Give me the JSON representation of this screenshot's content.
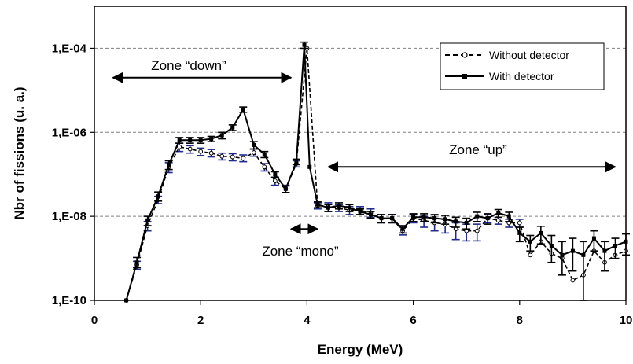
{
  "chart_data": {
    "type": "line",
    "title": "",
    "xlabel": "Energy (MeV)",
    "ylabel": "Nbr of fissions (u. a.)",
    "x_scale": "linear",
    "y_scale": "log",
    "xlim": [
      0,
      10
    ],
    "ylim": [
      1e-10,
      0.001
    ],
    "x_ticks": [
      0,
      2,
      4,
      6,
      8,
      10
    ],
    "x_tick_labels": [
      "0",
      "2",
      "4",
      "6",
      "8",
      "10"
    ],
    "y_ticks": [
      1e-10,
      1e-08,
      1e-06,
      0.0001
    ],
    "y_tick_labels": [
      "1,E-10",
      "1,E-08",
      "1,E-06",
      "1,E-04"
    ],
    "grid": {
      "y_major": true,
      "style": "dashed"
    },
    "legend": {
      "position": "top-right",
      "entries": [
        "Without detector",
        "With detector"
      ]
    },
    "annotations": [
      {
        "text": "Zone “down”",
        "arrow_from_x": 0.35,
        "arrow_to_x": 3.7,
        "arrow_y": 2e-05
      },
      {
        "text": "Zone “up”",
        "arrow_from_x": 4.4,
        "arrow_to_x": 9.8,
        "arrow_y": 1.5e-07
      },
      {
        "text": "Zone “mono”",
        "arrow_from_x": 3.7,
        "arrow_to_x": 4.2,
        "arrow_y": 5e-09
      }
    ],
    "colors": {
      "error_bars_without": "#1f2a8c",
      "line": "#000000",
      "grid": "#808080"
    },
    "series": [
      {
        "name": "Without detector",
        "style": "dashed",
        "marker": "open-circle",
        "x": [
          0.6,
          0.8,
          1.0,
          1.2,
          1.4,
          1.6,
          1.8,
          2.0,
          2.2,
          2.4,
          2.6,
          2.8,
          3.0,
          3.2,
          3.4,
          3.6,
          3.8,
          4.0,
          4.2,
          4.4,
          4.6,
          4.8,
          5.0,
          5.2,
          5.4,
          5.6,
          5.8,
          6.0,
          6.2,
          6.4,
          6.6,
          6.8,
          7.0,
          7.2,
          7.4,
          7.6,
          7.8,
          8.0,
          8.2,
          8.4,
          8.6,
          8.8,
          9.0,
          9.2,
          9.4,
          9.6,
          9.8,
          10.0
        ],
        "y": [
          1e-10,
          7e-10,
          6e-09,
          2.5e-08,
          1.5e-07,
          4.5e-07,
          4e-07,
          3.5e-07,
          3.2e-07,
          2.7e-07,
          2.6e-07,
          2.4e-07,
          3.3e-07,
          1.5e-07,
          7e-08,
          4.5e-08,
          1.8e-07,
          0.0001,
          1.8e-08,
          1.7e-08,
          1.6e-08,
          1.4e-08,
          1.4e-08,
          1.2e-08,
          9e-09,
          9e-09,
          4.5e-09,
          9e-09,
          8e-09,
          7e-09,
          6.5e-09,
          5e-09,
          4.5e-09,
          4.5e-09,
          9e-09,
          8e-09,
          7e-09,
          7e-09,
          1.2e-09,
          2.5e-09,
          1.3e-09,
          1e-09,
          3e-10,
          4e-10,
          1.5e-09,
          8e-10,
          1.2e-09,
          1.5e-09
        ],
        "err_low": [
          null,
          5.5e-10,
          4.5e-09,
          2e-08,
          1.1e-07,
          3.5e-07,
          3.2e-07,
          2.8e-07,
          2.6e-07,
          2.2e-07,
          2.1e-07,
          2e-07,
          2.7e-07,
          1.2e-07,
          5.5e-08,
          3.7e-08,
          1.5e-07,
          null,
          1.5e-08,
          1.3e-08,
          1.3e-08,
          1.1e-08,
          1.1e-08,
          9.5e-09,
          7e-09,
          7e-09,
          3.6e-09,
          7e-09,
          5.5e-09,
          4.5e-09,
          4e-09,
          2.8e-09,
          2.6e-09,
          2.6e-09,
          7e-09,
          6.5e-09,
          5.5e-09,
          5.5e-09,
          null,
          null,
          null,
          null,
          null,
          null,
          null,
          null,
          null,
          null
        ],
        "err_high": [
          null,
          8.5e-10,
          7.5e-09,
          3e-08,
          1.9e-07,
          5.5e-07,
          4.8e-07,
          4.2e-07,
          3.9e-07,
          3.2e-07,
          3.1e-07,
          2.9e-07,
          4e-07,
          1.8e-07,
          8.5e-08,
          5.5e-08,
          2.1e-07,
          null,
          2.1e-08,
          2.1e-08,
          1.9e-08,
          1.7e-08,
          1.7e-08,
          1.5e-08,
          1.1e-08,
          1.1e-08,
          5.5e-09,
          1.1e-08,
          1e-08,
          9e-09,
          8.5e-09,
          7e-09,
          6.5e-09,
          6.5e-09,
          1.1e-08,
          9.5e-09,
          8.5e-09,
          8.5e-09,
          null,
          null,
          null,
          null,
          null,
          null,
          null,
          null,
          null,
          null
        ]
      },
      {
        "name": "With detector",
        "style": "solid",
        "marker": "filled-square",
        "x": [
          0.6,
          0.8,
          1.0,
          1.2,
          1.4,
          1.6,
          1.8,
          2.0,
          2.2,
          2.4,
          2.6,
          2.8,
          3.0,
          3.2,
          3.4,
          3.6,
          3.8,
          3.95,
          4.05,
          4.2,
          4.4,
          4.6,
          4.8,
          5.0,
          5.2,
          5.4,
          5.6,
          5.8,
          6.0,
          6.2,
          6.4,
          6.6,
          6.8,
          7.0,
          7.2,
          7.4,
          7.6,
          7.8,
          8.0,
          8.2,
          8.4,
          8.6,
          8.8,
          9.0,
          9.2,
          9.4,
          9.6,
          9.8,
          10.0
        ],
        "y": [
          1e-10,
          8e-10,
          8e-09,
          3e-08,
          1.7e-07,
          6.5e-07,
          6.5e-07,
          6.5e-07,
          7e-07,
          8.5e-07,
          1.3e-06,
          3.5e-06,
          5e-07,
          3e-07,
          1e-07,
          4.5e-08,
          2e-07,
          0.00012,
          1.5e-07,
          1.9e-08,
          1.6e-08,
          1.8e-08,
          1.6e-08,
          1.3e-08,
          1.1e-08,
          9e-09,
          9e-09,
          5e-09,
          9.5e-09,
          9.5e-09,
          9e-09,
          8.5e-09,
          7.5e-09,
          7e-09,
          1e-08,
          9e-09,
          1.2e-08,
          1e-08,
          4e-09,
          2.5e-09,
          4e-09,
          2e-09,
          1.2e-09,
          1.5e-09,
          1.2e-09,
          3e-09,
          1.5e-09,
          2e-09,
          2.5e-09
        ],
        "err_low": [
          null,
          6e-10,
          6e-09,
          2.3e-08,
          1.3e-07,
          5.5e-07,
          5.5e-07,
          5.5e-07,
          6e-07,
          7e-07,
          1.1e-06,
          3e-06,
          4e-07,
          2.5e-07,
          8.5e-08,
          3.7e-08,
          1.7e-07,
          0.0001,
          null,
          1.6e-08,
          1.3e-08,
          1.5e-08,
          1.3e-08,
          1.1e-08,
          9e-09,
          7e-09,
          7e-09,
          4e-09,
          7.5e-09,
          7.5e-09,
          7e-09,
          6.5e-09,
          5.5e-09,
          5e-09,
          7.5e-09,
          6.5e-09,
          9.5e-09,
          7.5e-09,
          2.5e-09,
          1.5e-09,
          2.2e-09,
          8e-10,
          4e-10,
          5e-10,
          1e-10,
          1.5e-09,
          5e-10,
          1e-09,
          1.2e-09
        ],
        "err_high": [
          null,
          1.05e-09,
          1e-08,
          3.8e-08,
          2.1e-07,
          7.5e-07,
          7.5e-07,
          7.5e-07,
          8e-07,
          1e-06,
          1.5e-06,
          4e-06,
          6e-07,
          3.5e-07,
          1.15e-07,
          5.3e-08,
          2.3e-07,
          0.00014,
          null,
          2.2e-08,
          1.9e-08,
          2.1e-08,
          1.9e-08,
          1.5e-08,
          1.3e-08,
          1.1e-08,
          1.1e-08,
          6e-09,
          1.15e-08,
          1.15e-08,
          1.1e-08,
          1.05e-08,
          9.5e-09,
          9e-09,
          1.25e-08,
          1.15e-08,
          1.45e-08,
          1.25e-08,
          5.5e-09,
          3.5e-09,
          5.8e-09,
          3.5e-09,
          2.5e-09,
          3e-09,
          2.5e-09,
          4.5e-09,
          2.5e-09,
          3e-09,
          3.8e-09
        ]
      }
    ]
  }
}
